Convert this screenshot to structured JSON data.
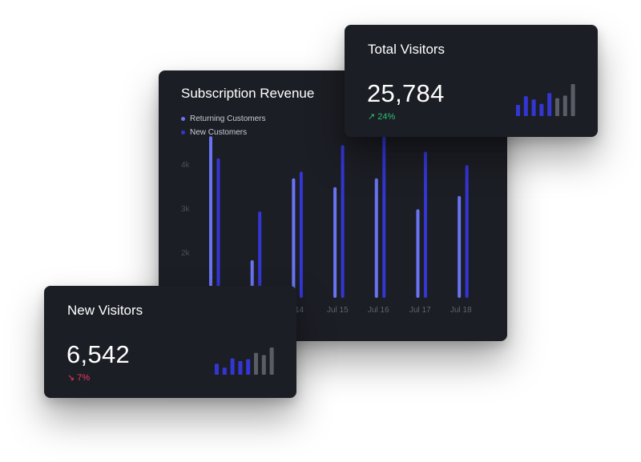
{
  "colors": {
    "card_bg": "#1c1e25",
    "returning": "#6a74f2",
    "new": "#3436d4",
    "gray_bar": "#5b5d66",
    "positive": "#2fbf71",
    "negative": "#f0395c"
  },
  "revenue_card": {
    "title": "Subscription Revenue",
    "legend": [
      {
        "label": "Returning Customers",
        "color": "#6a74f2"
      },
      {
        "label": "New Customers",
        "color": "#3436d4"
      }
    ],
    "y_ticks": [
      "4k",
      "3k",
      "2k"
    ],
    "x_ticks": [
      "14",
      "Jul 15",
      "Jul 16",
      "Jul 17",
      "Jul 18"
    ]
  },
  "chart_data": {
    "type": "bar",
    "categories": [
      "",
      "",
      "14",
      "Jul 15",
      "Jul 16",
      "Jul 17",
      "Jul 18"
    ],
    "series": [
      {
        "name": "Returning Customers",
        "values": [
          3.65,
          0.85,
          2.7,
          2.5,
          2.7,
          2.0,
          2.3
        ]
      },
      {
        "name": "New Customers",
        "values": [
          3.15,
          1.95,
          2.85,
          3.45,
          3.75,
          3.3,
          3.0
        ]
      }
    ],
    "y_ticks": [
      "4k",
      "3k",
      "2k"
    ],
    "ylim": [
      0,
      4
    ],
    "legend_position": "top-left"
  },
  "total_visitors": {
    "title": "Total Visitors",
    "value": "25,784",
    "delta": "↗ 24%",
    "sparkline": [
      {
        "v": 0.35,
        "c": "blue"
      },
      {
        "v": 0.62,
        "c": "blue"
      },
      {
        "v": 0.52,
        "c": "blue"
      },
      {
        "v": 0.38,
        "c": "blue"
      },
      {
        "v": 0.72,
        "c": "blue"
      },
      {
        "v": 0.56,
        "c": "gray"
      },
      {
        "v": 0.64,
        "c": "gray"
      },
      {
        "v": 1.0,
        "c": "gray"
      }
    ]
  },
  "new_visitors": {
    "title": "New Visitors",
    "value": "6,542",
    "delta": "↘ 7%",
    "sparkline": [
      {
        "v": 0.4,
        "c": "blue"
      },
      {
        "v": 0.26,
        "c": "blue"
      },
      {
        "v": 0.6,
        "c": "blue"
      },
      {
        "v": 0.5,
        "c": "blue"
      },
      {
        "v": 0.57,
        "c": "blue"
      },
      {
        "v": 0.8,
        "c": "gray"
      },
      {
        "v": 0.72,
        "c": "gray"
      },
      {
        "v": 1.0,
        "c": "gray"
      }
    ]
  }
}
